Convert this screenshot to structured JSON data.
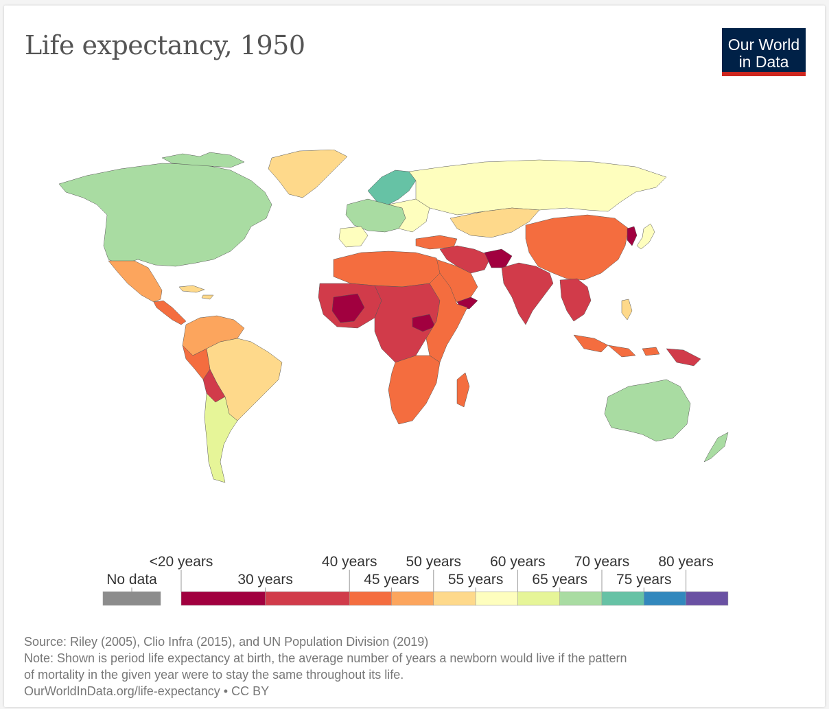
{
  "title": "Life expectancy, 1950",
  "logo": {
    "line1": "Our World",
    "line2": "in Data"
  },
  "legend": {
    "no_data_label": "No data",
    "no_data_color": "#8c8c8c",
    "bins": [
      {
        "color": "#a1003f"
      },
      {
        "color": "#d13b4a"
      },
      {
        "color": "#f46d3f"
      },
      {
        "color": "#fca55d"
      },
      {
        "color": "#fed98b"
      },
      {
        "color": "#fefebe"
      },
      {
        "color": "#e6f598"
      },
      {
        "color": "#a9dca2"
      },
      {
        "color": "#66c2a5"
      },
      {
        "color": "#3288bd"
      },
      {
        "color": "#6a51a3"
      }
    ],
    "top_labels": [
      "<20 years",
      "40 years",
      "50 years",
      "60 years",
      "70 years",
      "80 years"
    ],
    "bottom_labels": [
      "30 years",
      "45 years",
      "55 years",
      "65 years",
      "75 years"
    ]
  },
  "footer": {
    "source": "Source: Riley (2005), Clio Infra (2015), and UN Population Division (2019)",
    "note_line1": "Note: Shown is period life expectancy at birth, the average number of years a newborn would live if the pattern",
    "note_line2": "of mortality in the given year were to stay the same throughout its life.",
    "url": "OurWorldInData.org/life-expectancy • CC BY"
  }
}
